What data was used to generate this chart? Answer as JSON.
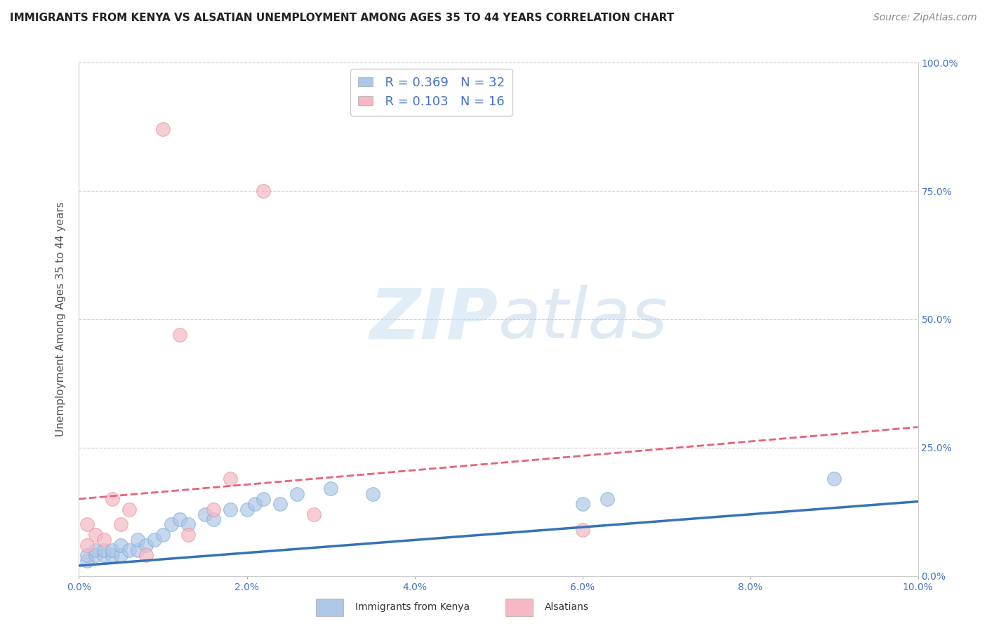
{
  "title": "IMMIGRANTS FROM KENYA VS ALSATIAN UNEMPLOYMENT AMONG AGES 35 TO 44 YEARS CORRELATION CHART",
  "source": "Source: ZipAtlas.com",
  "ylabel": "Unemployment Among Ages 35 to 44 years",
  "xlim": [
    0,
    0.1
  ],
  "ylim": [
    0,
    1.0
  ],
  "xticks": [
    0.0,
    0.02,
    0.04,
    0.06,
    0.08,
    0.1
  ],
  "xticklabels": [
    "0.0%",
    "2.0%",
    "4.0%",
    "6.0%",
    "8.0%",
    "10.0%"
  ],
  "yticks": [
    0.0,
    0.25,
    0.5,
    0.75,
    1.0
  ],
  "yticklabels": [
    "0.0%",
    "25.0%",
    "50.0%",
    "75.0%",
    "100.0%"
  ],
  "watermark_zip": "ZIP",
  "watermark_atlas": "atlas",
  "legend_blue_r": "R = 0.369",
  "legend_blue_n": "N = 32",
  "legend_pink_r": "R = 0.103",
  "legend_pink_n": "N = 16",
  "blue_scatter_color": "#aec6e8",
  "pink_scatter_color": "#f5b8c4",
  "blue_edge_color": "#7aaed6",
  "pink_edge_color": "#e8909c",
  "blue_line_color": "#3672b8",
  "pink_line_color": "#e8607a",
  "blue_scatter_x": [
    0.001,
    0.001,
    0.002,
    0.002,
    0.003,
    0.003,
    0.004,
    0.004,
    0.005,
    0.005,
    0.006,
    0.007,
    0.007,
    0.008,
    0.009,
    0.01,
    0.011,
    0.012,
    0.013,
    0.015,
    0.016,
    0.018,
    0.02,
    0.021,
    0.022,
    0.024,
    0.026,
    0.03,
    0.035,
    0.06,
    0.063,
    0.09
  ],
  "blue_scatter_y": [
    0.03,
    0.04,
    0.04,
    0.05,
    0.04,
    0.05,
    0.04,
    0.05,
    0.04,
    0.06,
    0.05,
    0.05,
    0.07,
    0.06,
    0.07,
    0.08,
    0.1,
    0.11,
    0.1,
    0.12,
    0.11,
    0.13,
    0.13,
    0.14,
    0.15,
    0.14,
    0.16,
    0.17,
    0.16,
    0.14,
    0.15,
    0.19
  ],
  "pink_scatter_x": [
    0.001,
    0.001,
    0.002,
    0.003,
    0.004,
    0.005,
    0.006,
    0.008,
    0.01,
    0.012,
    0.013,
    0.016,
    0.018,
    0.022,
    0.028,
    0.06
  ],
  "pink_scatter_y": [
    0.06,
    0.1,
    0.08,
    0.07,
    0.15,
    0.1,
    0.13,
    0.04,
    0.87,
    0.47,
    0.08,
    0.13,
    0.19,
    0.75,
    0.12,
    0.09
  ],
  "blue_trend_x": [
    0.0,
    0.1
  ],
  "blue_trend_y": [
    0.02,
    0.145
  ],
  "pink_trend_x": [
    0.0,
    0.1
  ],
  "pink_trend_y": [
    0.15,
    0.29
  ],
  "background_color": "#ffffff",
  "grid_color": "#cccccc",
  "title_fontsize": 11,
  "axis_label_fontsize": 11,
  "tick_fontsize": 10,
  "source_fontsize": 10,
  "legend_fontsize": 13
}
